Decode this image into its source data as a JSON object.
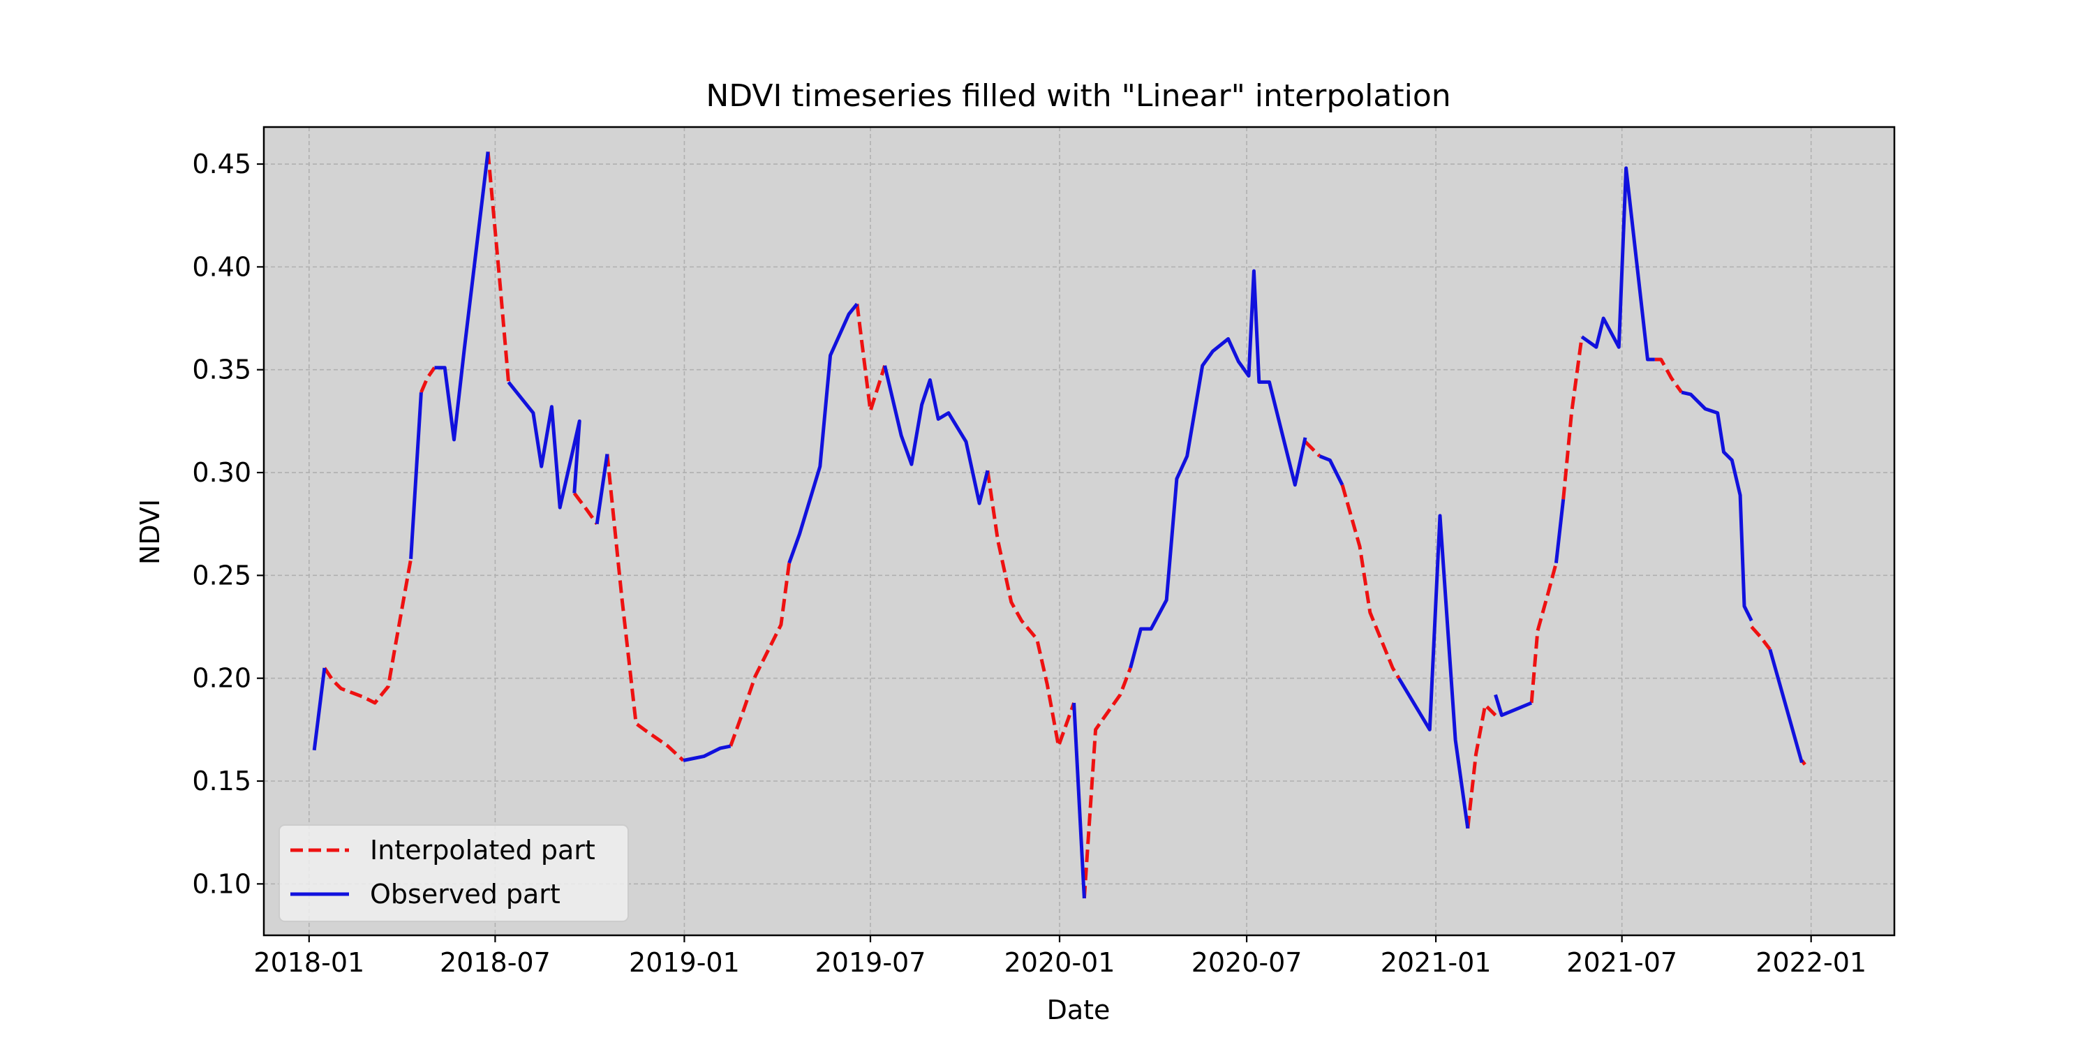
{
  "chart_data": {
    "type": "line",
    "title": "NDVI timeseries filled with \"Linear\" interpolation",
    "xlabel": "Date",
    "ylabel": "NDVI",
    "xlim": [
      "2017-11-18",
      "2022-03-23"
    ],
    "ylim": [
      0.075,
      0.468
    ],
    "x_ticks": [
      "2018-01",
      "2018-07",
      "2019-01",
      "2019-07",
      "2020-01",
      "2020-07",
      "2021-01",
      "2021-07",
      "2022-01"
    ],
    "y_ticks": [
      "0.10",
      "0.15",
      "0.20",
      "0.25",
      "0.30",
      "0.35",
      "0.40",
      "0.45"
    ],
    "grid": true,
    "legend_position": "lower-left",
    "colors": {
      "interpolated": "#ee1111",
      "observed": "#1111dd",
      "axes_background": "#d3d3d3",
      "grid": "#b0b0b0"
    },
    "series": [
      {
        "name": "Interpolated part",
        "style": "dashed",
        "segments": [
          [
            [
              "2018-01-16",
              0.205
            ],
            [
              "2018-01-24",
              0.199
            ],
            [
              "2018-02-01",
              0.195
            ],
            [
              "2018-02-22",
              0.191
            ],
            [
              "2018-03-06",
              0.188
            ],
            [
              "2018-03-19",
              0.196
            ],
            [
              "2018-03-26",
              0.216
            ],
            [
              "2018-04-10",
              0.258
            ]
          ],
          [
            [
              "2018-04-20",
              0.339
            ],
            [
              "2018-04-26",
              0.346
            ],
            [
              "2018-05-03",
              0.351
            ]
          ],
          [
            [
              "2018-06-24",
              0.456
            ],
            [
              "2018-07-06",
              0.39
            ],
            [
              "2018-07-14",
              0.344
            ]
          ],
          [
            [
              "2018-09-16",
              0.29
            ],
            [
              "2018-09-28",
              0.282
            ],
            [
              "2018-10-08",
              0.275
            ]
          ],
          [
            [
              "2018-10-18",
              0.309
            ],
            [
              "2018-11-01",
              0.24
            ],
            [
              "2018-11-15",
              0.178
            ],
            [
              "2018-11-23",
              0.175
            ],
            [
              "2018-12-16",
              0.167
            ],
            [
              "2018-12-31",
              0.16
            ]
          ],
          [
            [
              "2019-02-15",
              0.167
            ],
            [
              "2019-02-28",
              0.185
            ],
            [
              "2019-03-11",
              0.201
            ],
            [
              "2019-04-05",
              0.226
            ],
            [
              "2019-04-13",
              0.256
            ]
          ],
          [
            [
              "2019-06-18",
              0.382
            ],
            [
              "2019-07-01",
              0.33
            ],
            [
              "2019-07-15",
              0.352
            ]
          ],
          [
            [
              "2019-10-23",
              0.301
            ],
            [
              "2019-11-02",
              0.267
            ],
            [
              "2019-11-15",
              0.237
            ],
            [
              "2019-11-25",
              0.228
            ],
            [
              "2019-12-10",
              0.219
            ],
            [
              "2019-12-20",
              0.197
            ],
            [
              "2019-12-31",
              0.167
            ],
            [
              "2020-01-15",
              0.188
            ]
          ],
          [
            [
              "2020-01-25",
              0.093
            ],
            [
              "2020-02-05",
              0.175
            ],
            [
              "2020-02-12",
              0.18
            ],
            [
              "2020-02-29",
              0.192
            ],
            [
              "2020-03-10",
              0.205
            ]
          ],
          [
            [
              "2020-08-27",
              0.315
            ],
            [
              "2020-09-10",
              0.308
            ]
          ],
          [
            [
              "2020-10-02",
              0.294
            ],
            [
              "2020-10-19",
              0.264
            ],
            [
              "2020-10-29",
              0.232
            ],
            [
              "2020-11-20",
              0.205
            ],
            [
              "2020-11-26",
              0.2
            ]
          ],
          [
            [
              "2021-02-01",
              0.127
            ],
            [
              "2021-02-09",
              0.163
            ],
            [
              "2021-02-18",
              0.187
            ],
            [
              "2021-02-28",
              0.182
            ]
          ],
          [
            [
              "2021-04-04",
              0.188
            ],
            [
              "2021-04-10",
              0.223
            ],
            [
              "2021-04-20",
              0.241
            ],
            [
              "2021-04-28",
              0.256
            ]
          ],
          [
            [
              "2021-05-05",
              0.287
            ],
            [
              "2021-05-13",
              0.329
            ],
            [
              "2021-05-23",
              0.366
            ]
          ],
          [
            [
              "2021-08-02",
              0.355
            ],
            [
              "2021-08-08",
              0.355
            ],
            [
              "2021-08-18",
              0.346
            ],
            [
              "2021-08-28",
              0.339
            ]
          ],
          [
            [
              "2021-11-04",
              0.225
            ],
            [
              "2021-11-13",
              0.22
            ],
            [
              "2021-11-22",
              0.214
            ]
          ],
          [
            [
              "2021-12-23",
              0.16
            ],
            [
              "2021-12-26",
              0.158
            ]
          ]
        ]
      },
      {
        "name": "Observed part",
        "style": "solid",
        "segments": [
          [
            [
              "2018-01-06",
              0.165
            ],
            [
              "2018-01-16",
              0.205
            ]
          ],
          [
            [
              "2018-04-10",
              0.258
            ],
            [
              "2018-04-20",
              0.339
            ]
          ],
          [
            [
              "2018-05-03",
              0.351
            ],
            [
              "2018-05-13",
              0.351
            ],
            [
              "2018-05-22",
              0.316
            ],
            [
              "2018-06-01",
              0.36
            ],
            [
              "2018-06-24",
              0.456
            ]
          ],
          [
            [
              "2018-07-14",
              0.344
            ],
            [
              "2018-08-07",
              0.329
            ],
            [
              "2018-08-15",
              0.303
            ],
            [
              "2018-08-25",
              0.332
            ],
            [
              "2018-09-02",
              0.283
            ],
            [
              "2018-09-21",
              0.325
            ],
            [
              "2018-09-16",
              0.29
            ]
          ],
          [
            [
              "2018-10-08",
              0.275
            ],
            [
              "2018-10-18",
              0.309
            ]
          ],
          [
            [
              "2018-12-31",
              0.16
            ],
            [
              "2019-01-20",
              0.162
            ],
            [
              "2019-02-05",
              0.166
            ],
            [
              "2019-02-15",
              0.167
            ]
          ],
          [
            [
              "2019-04-13",
              0.256
            ],
            [
              "2019-04-23",
              0.27
            ],
            [
              "2019-05-13",
              0.303
            ],
            [
              "2019-05-23",
              0.357
            ],
            [
              "2019-06-10",
              0.377
            ],
            [
              "2019-06-18",
              0.382
            ]
          ],
          [
            [
              "2019-07-15",
              0.352
            ],
            [
              "2019-07-31",
              0.318
            ],
            [
              "2019-08-10",
              0.304
            ],
            [
              "2019-08-20",
              0.333
            ],
            [
              "2019-08-28",
              0.345
            ],
            [
              "2019-09-05",
              0.326
            ],
            [
              "2019-09-15",
              0.329
            ],
            [
              "2019-10-02",
              0.315
            ],
            [
              "2019-10-15",
              0.285
            ],
            [
              "2019-10-23",
              0.301
            ]
          ],
          [
            [
              "2020-01-15",
              0.188
            ],
            [
              "2020-01-25",
              0.093
            ]
          ],
          [
            [
              "2020-03-10",
              0.205
            ],
            [
              "2020-03-20",
              0.224
            ],
            [
              "2020-03-30",
              0.224
            ],
            [
              "2020-04-14",
              0.238
            ],
            [
              "2020-04-24",
              0.297
            ],
            [
              "2020-05-04",
              0.308
            ],
            [
              "2020-05-19",
              0.352
            ],
            [
              "2020-05-29",
              0.359
            ],
            [
              "2020-06-13",
              0.365
            ],
            [
              "2020-06-23",
              0.354
            ],
            [
              "2020-07-03",
              0.347
            ],
            [
              "2020-07-08",
              0.398
            ],
            [
              "2020-07-13",
              0.344
            ],
            [
              "2020-07-23",
              0.344
            ],
            [
              "2020-08-17",
              0.294
            ],
            [
              "2020-08-27",
              0.317
            ]
          ],
          [
            [
              "2020-09-10",
              0.308
            ],
            [
              "2020-09-20",
              0.306
            ],
            [
              "2020-10-02",
              0.294
            ]
          ],
          [
            [
              "2020-11-26",
              0.2
            ],
            [
              "2020-12-26",
              0.175
            ],
            [
              "2021-01-05",
              0.279
            ],
            [
              "2021-01-20",
              0.17
            ],
            [
              "2021-02-01",
              0.127
            ]
          ],
          [
            [
              "2021-02-28",
              0.192
            ],
            [
              "2021-03-06",
              0.182
            ],
            [
              "2021-04-04",
              0.188
            ]
          ],
          [
            [
              "2021-04-28",
              0.256
            ],
            [
              "2021-05-05",
              0.287
            ]
          ],
          [
            [
              "2021-05-23",
              0.366
            ],
            [
              "2021-06-06",
              0.361
            ],
            [
              "2021-06-13",
              0.375
            ],
            [
              "2021-06-28",
              0.361
            ],
            [
              "2021-07-05",
              0.448
            ],
            [
              "2021-07-26",
              0.355
            ],
            [
              "2021-08-02",
              0.355
            ]
          ],
          [
            [
              "2021-08-28",
              0.339
            ],
            [
              "2021-09-06",
              0.338
            ],
            [
              "2021-09-20",
              0.331
            ],
            [
              "2021-10-02",
              0.329
            ],
            [
              "2021-10-08",
              0.31
            ],
            [
              "2021-10-16",
              0.306
            ],
            [
              "2021-10-24",
              0.289
            ],
            [
              "2021-10-28",
              0.235
            ],
            [
              "2021-11-04",
              0.228
            ]
          ],
          [
            [
              "2021-11-22",
              0.214
            ],
            [
              "2021-12-23",
              0.159
            ]
          ]
        ]
      }
    ],
    "legend": [
      {
        "label": "Interpolated part",
        "style": "dashed",
        "color": "#ee1111"
      },
      {
        "label": "Observed part",
        "style": "solid",
        "color": "#1111dd"
      }
    ]
  }
}
